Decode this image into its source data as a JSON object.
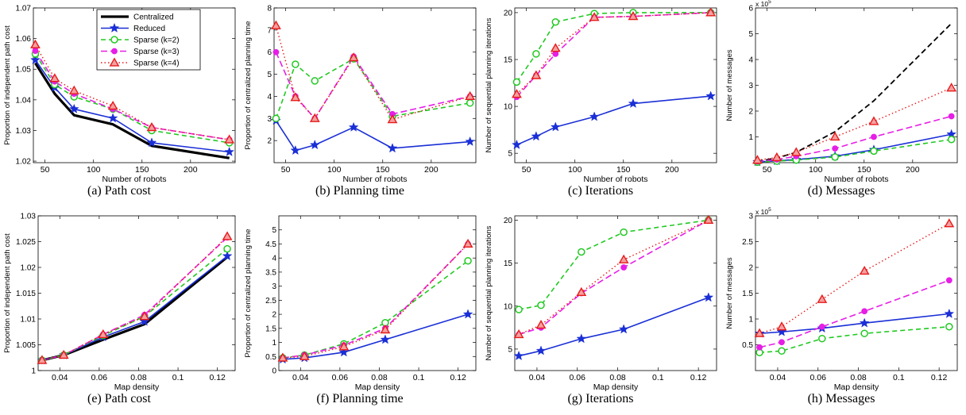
{
  "colors": {
    "centralized": "#000000",
    "reduced": "#1a2fd6",
    "sparse2": "#22c922",
    "sparse3": "#e61ee6",
    "sparse4": "#e81a1a"
  },
  "legend": {
    "centralized": "Centralized",
    "reduced": "Reduced",
    "sparse2": "Sparse (k=2)",
    "sparse3": "Sparse (k=3)",
    "sparse4": "Sparse (k=4)"
  },
  "chart_data": [
    {
      "id": "a",
      "type": "line",
      "caption": "(a)  Path cost",
      "xlabel": "Number of robots",
      "ylabel": "Proportion of independent path cost",
      "xlim": [
        38,
        246
      ],
      "ylim": [
        1.0195,
        1.07
      ],
      "xticks": [
        50,
        100,
        150,
        200
      ],
      "yticks": [
        1.02,
        1.03,
        1.04,
        1.05,
        1.06,
        1.07
      ],
      "ytick_labels": [
        "1.02",
        "1.03",
        "1.04",
        "1.05",
        "1.06",
        "1.07"
      ],
      "exponent": "",
      "legend": true,
      "x": [
        40,
        60,
        80,
        120,
        160,
        240
      ],
      "series": [
        {
          "key": "centralized",
          "values": [
            1.052,
            1.042,
            1.035,
            1.032,
            1.025,
            1.021
          ]
        },
        {
          "key": "reduced",
          "values": [
            1.053,
            1.044,
            1.037,
            1.034,
            1.026,
            1.023
          ]
        },
        {
          "key": "sparse2",
          "values": [
            1.055,
            1.045,
            1.041,
            1.037,
            1.03,
            1.026
          ]
        },
        {
          "key": "sparse3",
          "values": [
            1.056,
            1.046,
            1.042,
            1.037,
            1.031,
            1.027
          ]
        },
        {
          "key": "sparse4",
          "values": [
            1.058,
            1.047,
            1.043,
            1.038,
            1.031,
            1.027
          ]
        }
      ]
    },
    {
      "id": "b",
      "type": "line",
      "caption": "(b)  Planning time",
      "xlabel": "Number of robots",
      "ylabel": "Proportion of centralized planning time",
      "xlim": [
        38,
        246
      ],
      "ylim": [
        1,
        8
      ],
      "xticks": [
        50,
        100,
        150,
        200
      ],
      "yticks": [
        2,
        3,
        4,
        5,
        6,
        7,
        8
      ],
      "ytick_labels": [
        "2",
        "3",
        "4",
        "5",
        "6",
        "7",
        "8"
      ],
      "exponent": "",
      "legend": false,
      "x": [
        40,
        60,
        80,
        120,
        160,
        240
      ],
      "series": [
        {
          "key": "reduced",
          "values": [
            2.9,
            1.55,
            1.8,
            2.6,
            1.65,
            1.95
          ]
        },
        {
          "key": "sparse2",
          "values": [
            3.0,
            5.45,
            4.7,
            5.7,
            3.1,
            3.7
          ]
        },
        {
          "key": "sparse3",
          "values": [
            6.0,
            4.0,
            3.0,
            5.8,
            3.2,
            4.0
          ]
        },
        {
          "key": "sparse4",
          "values": [
            7.2,
            3.95,
            3.0,
            5.75,
            2.95,
            4.0
          ]
        }
      ]
    },
    {
      "id": "c",
      "type": "line",
      "caption": "(c)  Iterations",
      "xlabel": "Number of robots",
      "ylabel": "Number of sequential planning iterations",
      "xlim": [
        38,
        246
      ],
      "ylim": [
        4,
        20.5
      ],
      "xticks": [
        50,
        100,
        150,
        200
      ],
      "yticks": [
        5,
        10,
        15,
        20
      ],
      "ytick_labels": [
        "5",
        "10",
        "15",
        "20"
      ],
      "exponent": "",
      "legend": false,
      "x": [
        40,
        60,
        80,
        120,
        160,
        240
      ],
      "series": [
        {
          "key": "reduced",
          "values": [
            5.9,
            6.8,
            7.8,
            8.9,
            10.3,
            11.1
          ]
        },
        {
          "key": "sparse2",
          "values": [
            12.6,
            15.6,
            19.0,
            19.9,
            20.0,
            20.0
          ]
        },
        {
          "key": "sparse3",
          "values": [
            11.0,
            13.3,
            15.6,
            19.5,
            19.6,
            20.0
          ]
        },
        {
          "key": "sparse4",
          "values": [
            11.3,
            13.3,
            16.2,
            19.5,
            19.6,
            20.0
          ]
        }
      ]
    },
    {
      "id": "d",
      "type": "line",
      "caption": "(d)  Messages",
      "xlabel": "Number of robots",
      "ylabel": "Number of messages",
      "xlim": [
        38,
        246
      ],
      "ylim": [
        0,
        6
      ],
      "xticks": [
        50,
        100,
        150,
        200
      ],
      "yticks": [
        1,
        2,
        3,
        4,
        5,
        6
      ],
      "ytick_labels": [
        "1",
        "2",
        "3",
        "4",
        "5",
        "6"
      ],
      "exponent": "x 10",
      "exponent_power": "5",
      "legend": false,
      "x": [
        40,
        60,
        80,
        120,
        160,
        240
      ],
      "series": [
        {
          "key": "centralized",
          "values": [
            0.05,
            0.18,
            0.4,
            1.2,
            2.4,
            5.4
          ]
        },
        {
          "key": "reduced",
          "values": [
            0.03,
            0.07,
            0.12,
            0.25,
            0.5,
            1.1
          ]
        },
        {
          "key": "sparse2",
          "values": [
            0.02,
            0.06,
            0.1,
            0.22,
            0.45,
            0.9
          ]
        },
        {
          "key": "sparse3",
          "values": [
            0.05,
            0.12,
            0.25,
            0.55,
            1.0,
            1.8
          ]
        },
        {
          "key": "sparse4",
          "values": [
            0.1,
            0.2,
            0.4,
            1.0,
            1.6,
            2.9
          ]
        }
      ]
    },
    {
      "id": "e",
      "type": "line",
      "caption": "(e)  Path cost",
      "xlabel": "Map density",
      "ylabel": "Proportion of independent path cost",
      "xlim": [
        0.029,
        0.129
      ],
      "ylim": [
        1.0,
        1.03
      ],
      "xticks": [
        0.04,
        0.06,
        0.08,
        0.1,
        0.12
      ],
      "yticks": [
        1.0,
        1.005,
        1.01,
        1.015,
        1.02,
        1.025,
        1.03
      ],
      "ytick_labels": [
        "1",
        "1.005",
        "1.01",
        "1.015",
        "1.02",
        "1.025",
        "1.03"
      ],
      "exponent": "",
      "legend": false,
      "x": [
        0.031,
        0.042,
        0.062,
        0.083,
        0.125
      ],
      "series": [
        {
          "key": "centralized",
          "values": [
            1.002,
            1.003,
            1.006,
            1.009,
            1.022
          ]
        },
        {
          "key": "reduced",
          "values": [
            1.002,
            1.003,
            1.0065,
            1.0095,
            1.0222
          ]
        },
        {
          "key": "sparse2",
          "values": [
            1.002,
            1.003,
            1.0068,
            1.0105,
            1.0236
          ]
        },
        {
          "key": "sparse3",
          "values": [
            1.002,
            1.003,
            1.007,
            1.0108,
            1.0258
          ]
        },
        {
          "key": "sparse4",
          "values": [
            1.002,
            1.003,
            1.007,
            1.0105,
            1.026
          ]
        }
      ]
    },
    {
      "id": "f",
      "type": "line",
      "caption": "(f)  Planning time",
      "xlabel": "Map density",
      "ylabel": "Proportion of centralized planning time",
      "xlim": [
        0.029,
        0.129
      ],
      "ylim": [
        0,
        5.5
      ],
      "xticks": [
        0.04,
        0.06,
        0.08,
        0.1,
        0.12
      ],
      "yticks": [
        0,
        0.5,
        1,
        1.5,
        2,
        2.5,
        3,
        3.5,
        4,
        4.5,
        5
      ],
      "ytick_labels": [
        "0",
        "0.5",
        "1",
        "1.5",
        "2",
        "2.5",
        "3",
        "3.5",
        "4",
        "4.5",
        "5"
      ],
      "exponent": "",
      "legend": false,
      "x": [
        0.031,
        0.042,
        0.062,
        0.083,
        0.125
      ],
      "series": [
        {
          "key": "reduced",
          "values": [
            0.4,
            0.45,
            0.65,
            1.1,
            2.0
          ]
        },
        {
          "key": "sparse2",
          "values": [
            0.45,
            0.55,
            0.95,
            1.7,
            3.9
          ]
        },
        {
          "key": "sparse3",
          "values": [
            0.45,
            0.55,
            0.9,
            1.5,
            4.5
          ]
        },
        {
          "key": "sparse4",
          "values": [
            0.45,
            0.5,
            0.85,
            1.45,
            4.5
          ]
        }
      ]
    },
    {
      "id": "g",
      "type": "line",
      "caption": "(g)  Iterations",
      "xlabel": "Map density",
      "ylabel": "Number of sequential planning iterations",
      "xlim": [
        0.029,
        0.129
      ],
      "ylim": [
        2.5,
        20.5
      ],
      "xticks": [
        0.04,
        0.06,
        0.08,
        0.1,
        0.12
      ],
      "yticks": [
        5,
        10,
        15,
        20
      ],
      "ytick_labels": [
        "5",
        "10",
        "15",
        "20"
      ],
      "exponent": "",
      "legend": false,
      "x": [
        0.031,
        0.042,
        0.062,
        0.083,
        0.125
      ],
      "series": [
        {
          "key": "reduced",
          "values": [
            4.2,
            4.8,
            6.2,
            7.3,
            11.0
          ]
        },
        {
          "key": "sparse2",
          "values": [
            9.6,
            10.1,
            16.3,
            18.6,
            20.0
          ]
        },
        {
          "key": "sparse3",
          "values": [
            6.7,
            7.5,
            11.5,
            14.5,
            20.0
          ]
        },
        {
          "key": "sparse4",
          "values": [
            6.7,
            7.8,
            11.6,
            15.4,
            20.0
          ]
        }
      ]
    },
    {
      "id": "h",
      "type": "line",
      "caption": "(h)  Messages",
      "xlabel": "Map density",
      "ylabel": "Number of messages",
      "xlim": [
        0.029,
        0.129
      ],
      "ylim": [
        0,
        3
      ],
      "xticks": [
        0.04,
        0.06,
        0.08,
        0.1,
        0.12
      ],
      "yticks": [
        0.5,
        1,
        1.5,
        2,
        2.5,
        3
      ],
      "ytick_labels": [
        "0.5",
        "1",
        "1.5",
        "2",
        "2.5",
        "3"
      ],
      "exponent": "x 10",
      "exponent_power": "5",
      "legend": false,
      "x": [
        0.031,
        0.042,
        0.062,
        0.083,
        0.125
      ],
      "series": [
        {
          "key": "reduced",
          "values": [
            0.72,
            0.75,
            0.82,
            0.92,
            1.1
          ]
        },
        {
          "key": "sparse2",
          "values": [
            0.35,
            0.38,
            0.62,
            0.72,
            0.85
          ]
        },
        {
          "key": "sparse3",
          "values": [
            0.45,
            0.55,
            0.85,
            1.15,
            1.75
          ]
        },
        {
          "key": "sparse4",
          "values": [
            0.72,
            0.85,
            1.38,
            1.93,
            2.85
          ]
        }
      ]
    }
  ]
}
